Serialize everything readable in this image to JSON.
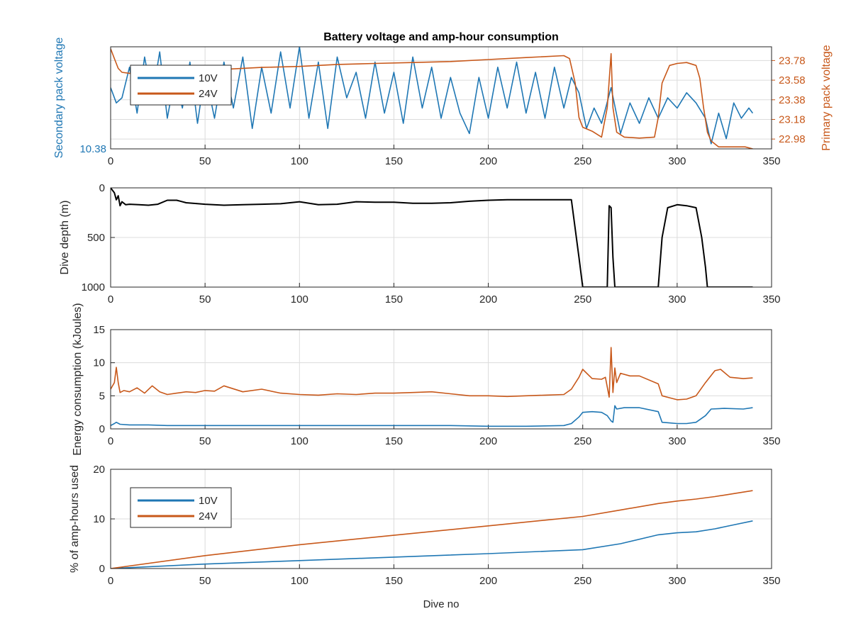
{
  "figure": {
    "title": "Battery voltage and amp-hour consumption",
    "xlabel": "Dive no"
  },
  "colors": {
    "blue": "#1f77b4",
    "orange": "#c8581a",
    "black": "#000000",
    "axis": "#262626",
    "grid": "#dcdcdc"
  },
  "chart_data": [
    {
      "type": "line",
      "xlim": [
        0,
        350
      ],
      "xticks": [
        0,
        50,
        100,
        150,
        200,
        250,
        300,
        350
      ],
      "left_ylabel": "Secondary pack voltage",
      "right_ylabel": "Primary pack voltage",
      "left_ytick_labels": [
        "10.38"
      ],
      "right_ylim": [
        22.88,
        23.92
      ],
      "right_yticks": [
        22.98,
        23.18,
        23.38,
        23.58,
        23.78
      ],
      "right_ytick_labels": [
        "22.98",
        "23.18",
        "23.38",
        "23.58",
        "23.78"
      ],
      "legend": {
        "location": "upper-left",
        "entries": [
          "10V",
          "24V"
        ]
      },
      "series": [
        {
          "name": "10V",
          "axis": "left",
          "color": "blue",
          "x": [
            0,
            3,
            6,
            10,
            14,
            18,
            22,
            26,
            30,
            34,
            38,
            42,
            46,
            50,
            55,
            60,
            65,
            70,
            75,
            80,
            85,
            90,
            95,
            100,
            105,
            110,
            115,
            120,
            125,
            130,
            135,
            140,
            145,
            150,
            155,
            160,
            165,
            170,
            175,
            180,
            185,
            190,
            195,
            200,
            205,
            210,
            215,
            220,
            225,
            230,
            235,
            240,
            244,
            248,
            252,
            256,
            260,
            265,
            270,
            275,
            280,
            285,
            290,
            295,
            300,
            305,
            310,
            315,
            318,
            322,
            326,
            330,
            334,
            338,
            340
          ],
          "y": [
            0.6,
            0.45,
            0.5,
            0.8,
            0.35,
            0.9,
            0.5,
            0.95,
            0.3,
            0.7,
            0.4,
            0.85,
            0.25,
            0.75,
            0.3,
            0.85,
            0.4,
            0.9,
            0.2,
            0.8,
            0.35,
            0.95,
            0.4,
            1.0,
            0.3,
            0.85,
            0.2,
            0.9,
            0.5,
            0.75,
            0.3,
            0.85,
            0.35,
            0.75,
            0.25,
            0.9,
            0.4,
            0.8,
            0.3,
            0.7,
            0.35,
            0.15,
            0.7,
            0.3,
            0.8,
            0.4,
            0.85,
            0.35,
            0.75,
            0.3,
            0.8,
            0.4,
            0.7,
            0.55,
            0.2,
            0.4,
            0.25,
            0.6,
            0.15,
            0.45,
            0.25,
            0.5,
            0.3,
            0.5,
            0.4,
            0.55,
            0.45,
            0.3,
            0.05,
            0.35,
            0.1,
            0.45,
            0.3,
            0.4,
            0.35
          ]
        },
        {
          "name": "24V",
          "axis": "right",
          "color": "orange",
          "x": [
            0,
            2,
            4,
            6,
            10,
            20,
            40,
            60,
            80,
            100,
            120,
            140,
            160,
            180,
            200,
            220,
            240,
            243,
            246,
            248,
            250,
            255,
            260,
            263,
            265,
            266,
            268,
            272,
            280,
            288,
            290,
            292,
            296,
            300,
            305,
            310,
            312,
            314,
            316,
            318,
            322,
            330,
            336,
            340
          ],
          "y": [
            23.9,
            23.8,
            23.7,
            23.66,
            23.65,
            23.64,
            23.67,
            23.69,
            23.71,
            23.72,
            23.74,
            23.75,
            23.76,
            23.77,
            23.79,
            23.81,
            23.83,
            23.8,
            23.55,
            23.2,
            23.1,
            23.06,
            23.0,
            23.3,
            23.85,
            23.3,
            23.05,
            23.0,
            22.99,
            23.0,
            23.2,
            23.55,
            23.73,
            23.75,
            23.76,
            23.73,
            23.6,
            23.3,
            23.05,
            22.96,
            22.9,
            22.9,
            22.9,
            22.88
          ]
        }
      ]
    },
    {
      "type": "line",
      "xlim": [
        0,
        350
      ],
      "xticks": [
        0,
        50,
        100,
        150,
        200,
        250,
        300,
        350
      ],
      "ylabel": "Dive depth (m)",
      "ylim": [
        0,
        1000
      ],
      "y_reversed": true,
      "yticks": [
        0,
        500,
        1000
      ],
      "series": [
        {
          "name": "",
          "color": "black",
          "x": [
            0,
            2,
            3,
            4,
            5,
            6,
            8,
            10,
            15,
            20,
            25,
            30,
            35,
            40,
            50,
            60,
            70,
            80,
            90,
            100,
            110,
            120,
            130,
            140,
            150,
            160,
            170,
            180,
            190,
            200,
            210,
            220,
            230,
            240,
            244,
            248,
            250,
            255,
            260,
            263,
            264,
            265,
            266,
            267,
            268,
            270,
            280,
            290,
            292,
            295,
            300,
            305,
            310,
            313,
            315,
            316,
            320,
            330,
            340
          ],
          "y": [
            0,
            50,
            120,
            80,
            180,
            140,
            170,
            165,
            170,
            175,
            165,
            125,
            125,
            150,
            165,
            175,
            170,
            165,
            160,
            140,
            170,
            165,
            140,
            145,
            145,
            155,
            155,
            150,
            135,
            125,
            120,
            120,
            120,
            120,
            120,
            700,
            1000,
            1000,
            1000,
            1000,
            180,
            200,
            700,
            1000,
            1000,
            1000,
            1000,
            1000,
            500,
            200,
            170,
            180,
            200,
            500,
            800,
            1000,
            1000,
            1000,
            1000
          ]
        }
      ]
    },
    {
      "type": "line",
      "xlim": [
        0,
        350
      ],
      "xticks": [
        0,
        50,
        100,
        150,
        200,
        250,
        300,
        350
      ],
      "ylabel": "Energy consumption (kJoules)",
      "ylim": [
        0,
        15
      ],
      "yticks": [
        0,
        5,
        10,
        15
      ],
      "series": [
        {
          "name": "24V",
          "color": "orange",
          "x": [
            0,
            2,
            3,
            4,
            5,
            7,
            10,
            14,
            18,
            22,
            26,
            30,
            35,
            40,
            45,
            50,
            55,
            60,
            70,
            80,
            90,
            100,
            110,
            120,
            130,
            140,
            150,
            160,
            170,
            180,
            190,
            200,
            210,
            220,
            230,
            240,
            244,
            248,
            250,
            255,
            260,
            262,
            264,
            265,
            266,
            267,
            268,
            270,
            275,
            280,
            290,
            292,
            296,
            300,
            305,
            310,
            315,
            320,
            323,
            328,
            335,
            340
          ],
          "y": [
            6.0,
            7.0,
            9.3,
            7.0,
            5.5,
            5.8,
            5.6,
            6.2,
            5.4,
            6.5,
            5.6,
            5.2,
            5.4,
            5.6,
            5.5,
            5.8,
            5.7,
            6.5,
            5.6,
            6.0,
            5.4,
            5.2,
            5.1,
            5.3,
            5.2,
            5.4,
            5.4,
            5.5,
            5.6,
            5.3,
            5.0,
            5.0,
            4.9,
            5.0,
            5.1,
            5.2,
            6.0,
            7.8,
            9.0,
            7.6,
            7.5,
            7.8,
            4.8,
            12.3,
            5.5,
            9.2,
            7.0,
            8.4,
            8.0,
            8.0,
            6.8,
            5.0,
            4.7,
            4.4,
            4.5,
            5.0,
            7.0,
            8.8,
            9.0,
            7.8,
            7.6,
            7.7
          ]
        },
        {
          "name": "10V",
          "color": "blue",
          "x": [
            0,
            2,
            3,
            5,
            10,
            20,
            30,
            40,
            60,
            80,
            100,
            120,
            140,
            160,
            180,
            200,
            220,
            240,
            244,
            248,
            250,
            255,
            260,
            263,
            265,
            266,
            267,
            268,
            272,
            280,
            290,
            292,
            296,
            300,
            305,
            310,
            315,
            318,
            325,
            335,
            340
          ],
          "y": [
            0.5,
            0.8,
            1.0,
            0.7,
            0.6,
            0.6,
            0.5,
            0.5,
            0.5,
            0.5,
            0.5,
            0.5,
            0.5,
            0.5,
            0.5,
            0.4,
            0.4,
            0.5,
            0.8,
            1.8,
            2.5,
            2.6,
            2.5,
            2.0,
            1.2,
            1.0,
            3.5,
            3.0,
            3.2,
            3.2,
            2.6,
            1.0,
            0.9,
            0.8,
            0.8,
            1.0,
            2.0,
            3.0,
            3.1,
            3.0,
            3.2
          ]
        }
      ]
    },
    {
      "type": "line",
      "xlim": [
        0,
        350
      ],
      "xticks": [
        0,
        50,
        100,
        150,
        200,
        250,
        300,
        350
      ],
      "ylabel": "% of amp-hours used",
      "ylim": [
        0,
        20
      ],
      "yticks": [
        0,
        10,
        20
      ],
      "legend": {
        "location": "upper-left",
        "entries": [
          "10V",
          "24V"
        ]
      },
      "series": [
        {
          "name": "10V",
          "color": "blue",
          "x": [
            0,
            50,
            100,
            150,
            200,
            250,
            270,
            290,
            300,
            310,
            320,
            330,
            340
          ],
          "y": [
            0,
            0.9,
            1.6,
            2.3,
            3.0,
            3.8,
            5.0,
            6.8,
            7.2,
            7.4,
            8.0,
            8.8,
            9.6
          ]
        },
        {
          "name": "24V",
          "color": "orange",
          "x": [
            0,
            50,
            100,
            150,
            200,
            250,
            270,
            290,
            300,
            310,
            320,
            330,
            340
          ],
          "y": [
            0,
            2.6,
            4.8,
            6.7,
            8.6,
            10.5,
            11.8,
            13.1,
            13.6,
            14.0,
            14.5,
            15.1,
            15.7
          ]
        }
      ]
    }
  ]
}
